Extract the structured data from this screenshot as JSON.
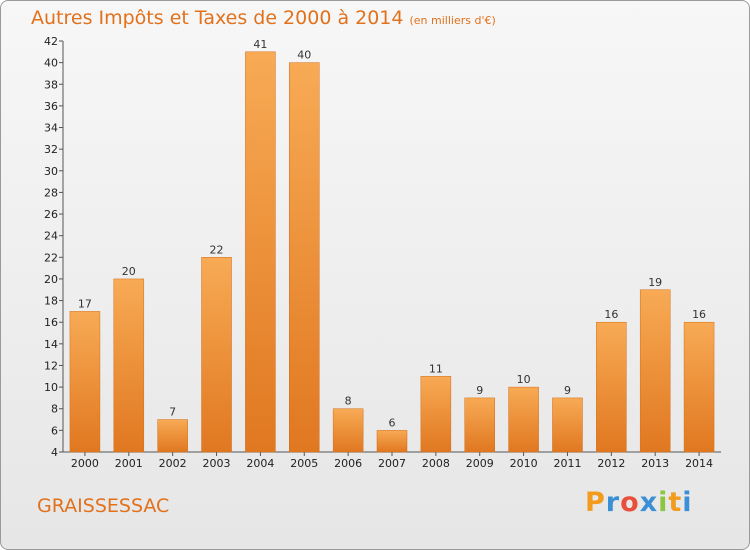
{
  "title": "Autres Impôts et Taxes de 2000 à 2014",
  "unit": "(en milliers d'€)",
  "commune": "GRAISSESSAC",
  "logo": {
    "letters": [
      "P",
      "r",
      "o",
      "x",
      "i",
      "t",
      "i"
    ],
    "colors": [
      "#f29b1d",
      "#3a8fd6",
      "#e9503c",
      "#3a8fd6",
      "#8cc63f",
      "#f29b1d",
      "#3a8fd6"
    ]
  },
  "colors": {
    "bar_light": "#f8aa55",
    "bar_dark": "#e07820",
    "accent": "#e2711c"
  },
  "chart_data": {
    "type": "bar",
    "title": "Autres Impôts et Taxes de 2000 à 2014",
    "subtitle": "(en milliers d'€)",
    "categories": [
      "2000",
      "2001",
      "2002",
      "2003",
      "2004",
      "2005",
      "2006",
      "2007",
      "2008",
      "2009",
      "2010",
      "2011",
      "2012",
      "2013",
      "2014"
    ],
    "values": [
      17,
      20,
      7,
      22,
      41,
      40,
      8,
      6,
      11,
      9,
      10,
      9,
      16,
      19,
      16
    ],
    "ylim": [
      4,
      42
    ],
    "yticks": [
      4,
      6,
      8,
      10,
      12,
      14,
      16,
      18,
      20,
      22,
      24,
      26,
      28,
      30,
      32,
      34,
      36,
      38,
      40,
      42
    ],
    "grid": false,
    "legend": "none"
  }
}
